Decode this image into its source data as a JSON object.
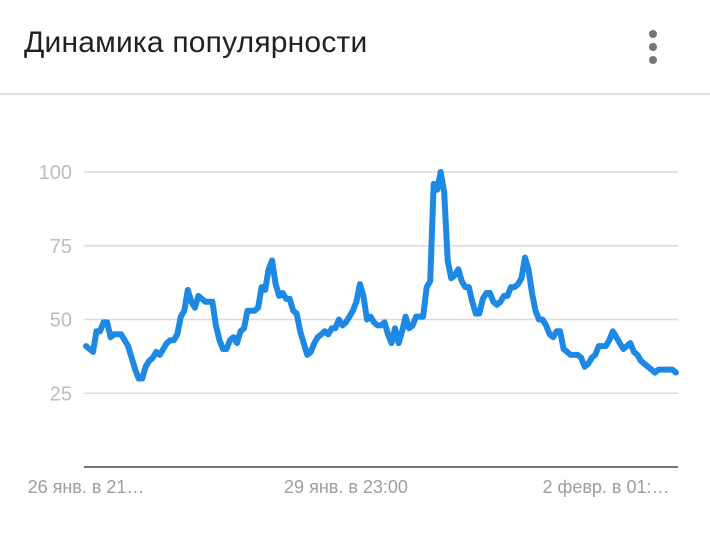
{
  "header": {
    "title": "Динамика популярности",
    "menu_icon": "more-vert-icon"
  },
  "colors": {
    "line": "#1E88E5",
    "grid": "#dcdcdc",
    "axis": "#757575",
    "tick_text": "#bdbdbd"
  },
  "chart_data": {
    "type": "line",
    "title": "Динамика популярности",
    "xlabel": "",
    "ylabel": "",
    "ylim": [
      0,
      100
    ],
    "yticks": [
      "100",
      "75",
      "50",
      "25"
    ],
    "xtick_labels": [
      "26 янв. в 21…",
      "29 янв. в 23:00",
      "2 февр. в 01:…"
    ],
    "grid": true,
    "series": [
      {
        "values": [
          41,
          40,
          39,
          46,
          46,
          49,
          49,
          44,
          45,
          45,
          45,
          43,
          41,
          37,
          33,
          30,
          30,
          34,
          36,
          37,
          39,
          38,
          40,
          42,
          43,
          43,
          45,
          51,
          53,
          60,
          56,
          54,
          58,
          57,
          56,
          56,
          56,
          48,
          43,
          40,
          40,
          43,
          44,
          42,
          46,
          47,
          53,
          53,
          53,
          54,
          61,
          60,
          67,
          70,
          62,
          58,
          59,
          57,
          57,
          53,
          52,
          46,
          42,
          38,
          39,
          42,
          44,
          45,
          46,
          45,
          47,
          47,
          50,
          48,
          49,
          51,
          53,
          56,
          62,
          58,
          50,
          51,
          49,
          48,
          48,
          49,
          45,
          42,
          47,
          42,
          46,
          51,
          47,
          48,
          51,
          51,
          51,
          61,
          63,
          96,
          94,
          100,
          93,
          70,
          64,
          65,
          67,
          63,
          61,
          61,
          56,
          52,
          52,
          57,
          59,
          59,
          56,
          55,
          56,
          58,
          58,
          61,
          61,
          62,
          64,
          71,
          67,
          59,
          53,
          50,
          50,
          48,
          45,
          44,
          46,
          46,
          40,
          39,
          38,
          38,
          38,
          37,
          34,
          35,
          37,
          38,
          41,
          41,
          41,
          43,
          46,
          44,
          42,
          40,
          41,
          42,
          39,
          38,
          36,
          35,
          34,
          33,
          32,
          33,
          33,
          33,
          33,
          33,
          32
        ]
      }
    ]
  }
}
